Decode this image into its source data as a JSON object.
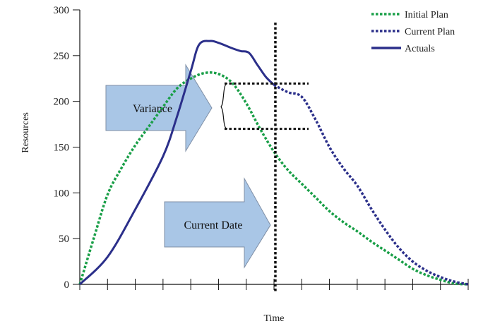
{
  "chart_data": {
    "type": "line",
    "title": "",
    "xlabel": "Time",
    "ylabel": "Resources",
    "ylim": [
      0,
      300
    ],
    "y_ticks": [
      0,
      50,
      100,
      150,
      200,
      250,
      300
    ],
    "x_tick_count": 15,
    "xlim": [
      0,
      14
    ],
    "grid": false,
    "legend": {
      "position": "top-right"
    },
    "series": [
      {
        "name": "Initial Plan",
        "style": "dotted",
        "color": "#1a9f48",
        "x": [
          0,
          0.5,
          1,
          1.5,
          2,
          2.5,
          3,
          3.5,
          4,
          4.5,
          5,
          5.5,
          6,
          6.5,
          7,
          7.5,
          8,
          8.5,
          9,
          9.5,
          10,
          10.5,
          11,
          11.5,
          12,
          12.5,
          13,
          13.5,
          14
        ],
        "values": [
          0,
          50,
          98,
          127,
          152,
          173,
          194,
          214,
          225,
          231,
          230,
          220,
          198,
          170,
          145,
          125,
          110,
          95,
          80,
          68,
          58,
          47,
          37,
          27,
          17,
          10,
          5,
          1,
          0
        ]
      },
      {
        "name": "Current Plan",
        "style": "dotted",
        "color": "#2b2f8a",
        "x": [
          7,
          7.5,
          8,
          8.5,
          9,
          9.5,
          10,
          10.5,
          11,
          11.5,
          12,
          12.5,
          13,
          13.5,
          14
        ],
        "values": [
          218,
          210,
          205,
          180,
          150,
          127,
          108,
          83,
          60,
          40,
          25,
          15,
          8,
          3,
          0
        ]
      },
      {
        "name": "Actuals",
        "style": "solid",
        "color": "#2b2f8a",
        "x": [
          0,
          1,
          2,
          3,
          3.5,
          4,
          4.3,
          4.7,
          5,
          5.5,
          5.8,
          6.1,
          6.4,
          6.7,
          7
        ],
        "values": [
          0,
          30,
          82,
          140,
          183,
          233,
          262,
          266,
          264,
          258,
          255,
          253,
          240,
          227,
          218
        ]
      }
    ],
    "current_date_x": 7.05,
    "variance_bracket": {
      "from": 218,
      "to": 170
    },
    "annotations": [
      {
        "id": "variance",
        "text": "Variance"
      },
      {
        "id": "current-date",
        "text": "Current Date"
      }
    ]
  }
}
